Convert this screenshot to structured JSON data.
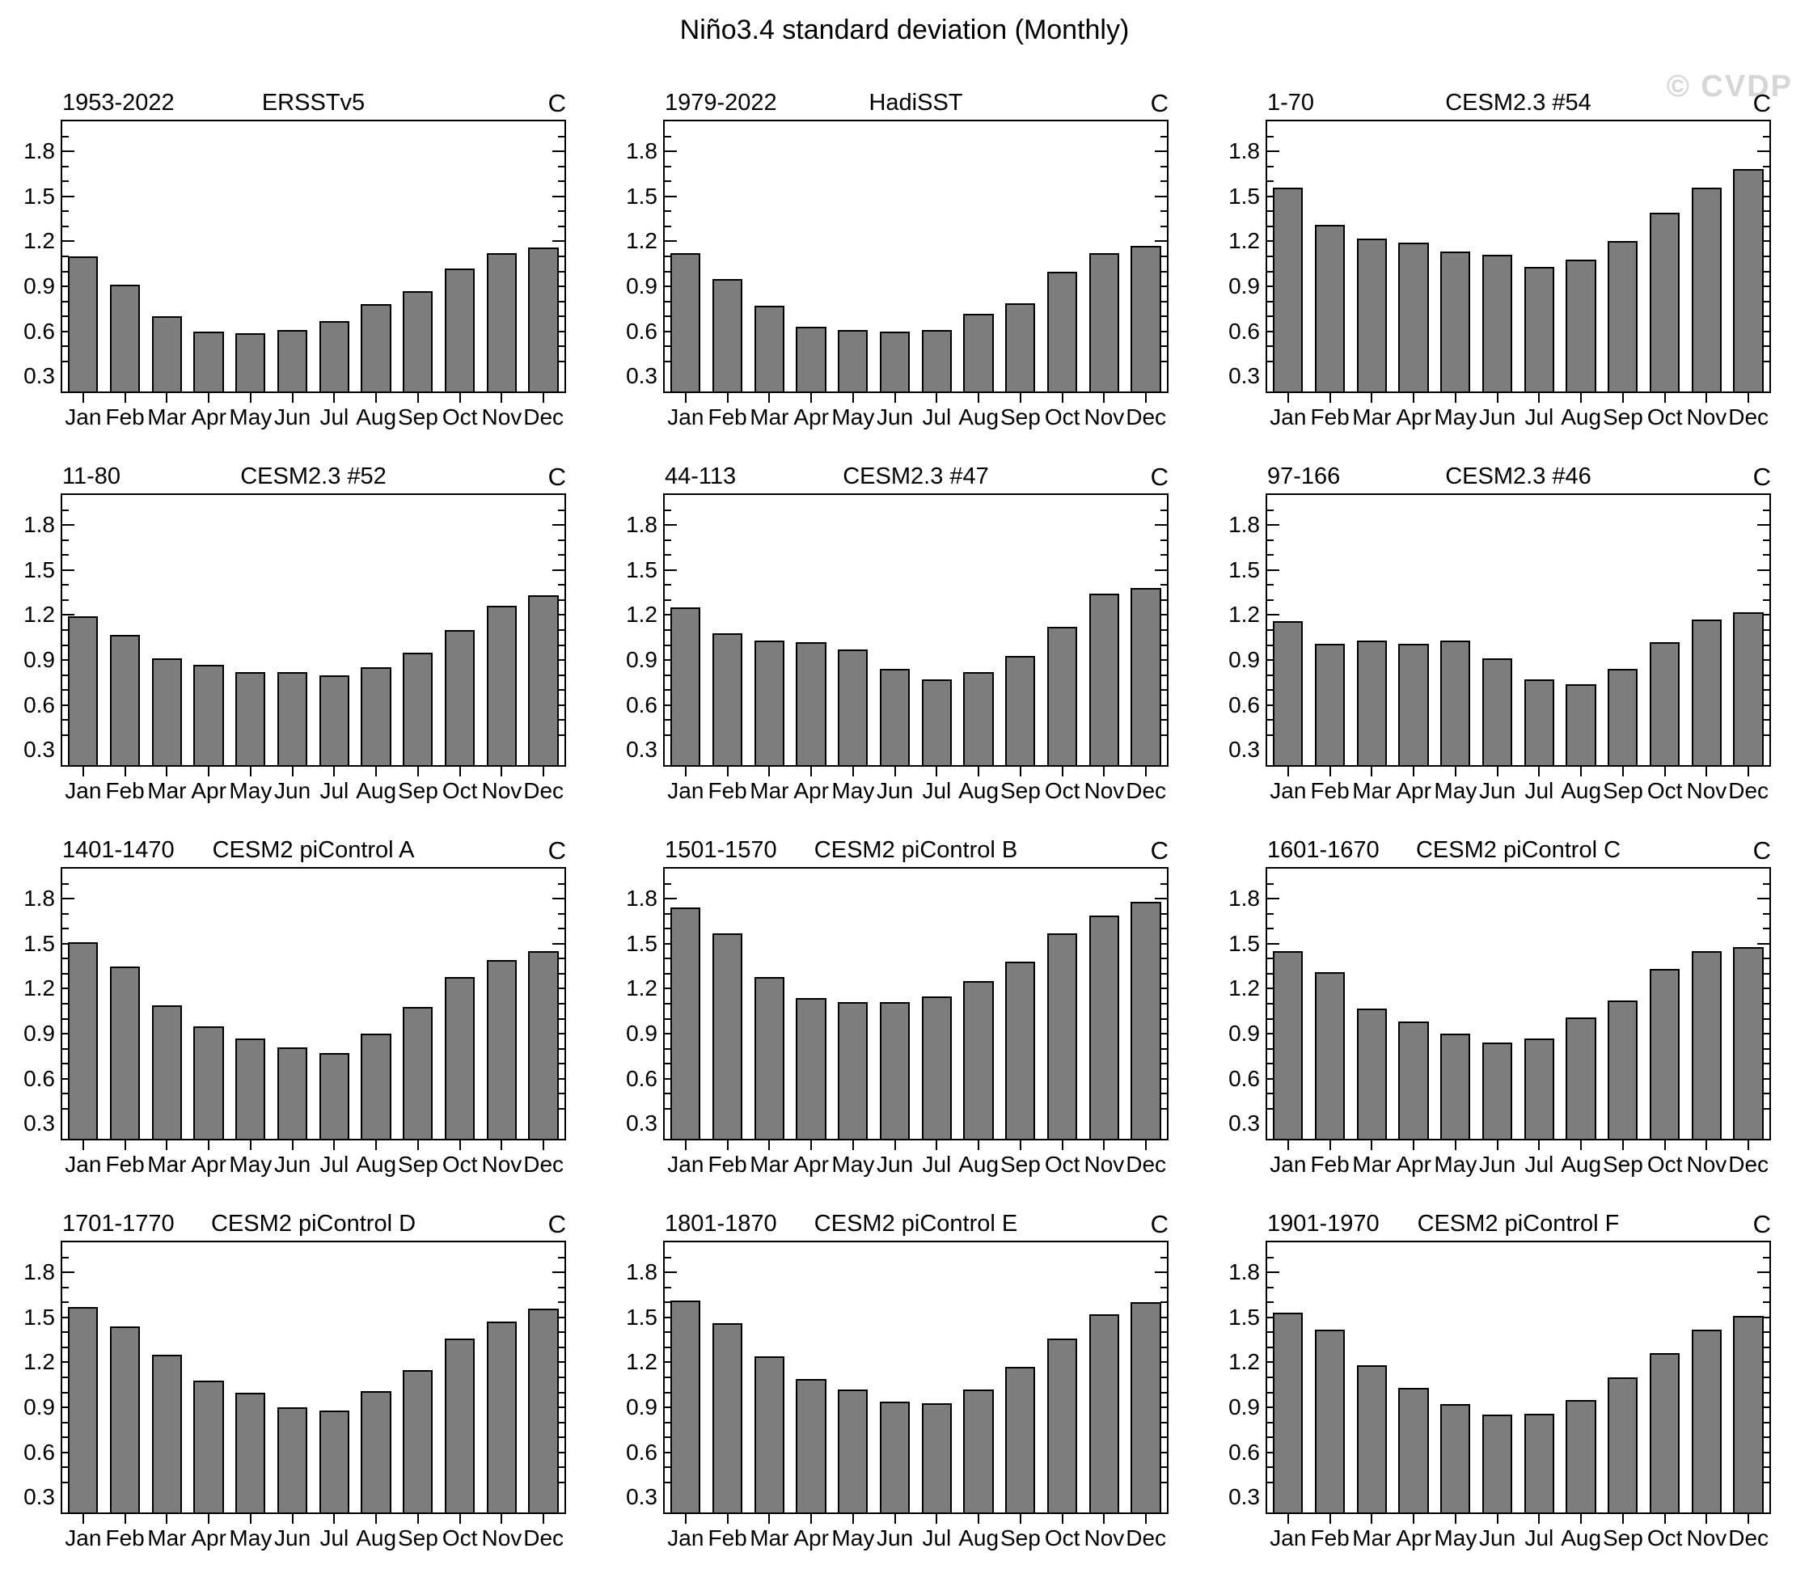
{
  "page_title": "Niño3.4 standard deviation (Monthly)",
  "watermark": "© CVDP",
  "chart_data": {
    "type": "bar",
    "title": "Niño3.4 standard deviation (Monthly)",
    "categories": [
      "Jan",
      "Feb",
      "Mar",
      "Apr",
      "May",
      "Jun",
      "Jul",
      "Aug",
      "Sep",
      "Oct",
      "Nov",
      "Dec"
    ],
    "unit_label": "C",
    "ylabel": "",
    "xlabel": "",
    "yticks": [
      0.3,
      0.6,
      0.9,
      1.2,
      1.5,
      1.8
    ],
    "minor_tick_step": 0.1,
    "ylim": [
      0.2,
      2.0
    ],
    "bar_color": "#7d7d7d",
    "grid": false,
    "legend_position": "none",
    "panels": [
      {
        "period": "1953-2022",
        "name": "ERSSTv5",
        "values": [
          1.1,
          0.91,
          0.7,
          0.6,
          0.59,
          0.61,
          0.67,
          0.78,
          0.87,
          1.02,
          1.12,
          1.16
        ]
      },
      {
        "period": "1979-2022",
        "name": "HadiSST",
        "values": [
          1.12,
          0.95,
          0.77,
          0.63,
          0.61,
          0.6,
          0.61,
          0.72,
          0.79,
          1.0,
          1.12,
          1.17
        ]
      },
      {
        "period": "1-70",
        "name": "CESM2.3 #54",
        "values": [
          1.56,
          1.31,
          1.22,
          1.19,
          1.13,
          1.11,
          1.03,
          1.08,
          1.2,
          1.39,
          1.56,
          1.68
        ]
      },
      {
        "period": "11-80",
        "name": "CESM2.3 #52",
        "values": [
          1.19,
          1.07,
          0.91,
          0.87,
          0.82,
          0.82,
          0.8,
          0.85,
          0.95,
          1.1,
          1.26,
          1.33
        ]
      },
      {
        "period": "44-113",
        "name": "CESM2.3 #47",
        "values": [
          1.25,
          1.08,
          1.03,
          1.02,
          0.97,
          0.84,
          0.77,
          0.82,
          0.93,
          1.12,
          1.34,
          1.38
        ]
      },
      {
        "period": "97-166",
        "name": "CESM2.3 #46",
        "values": [
          1.16,
          1.01,
          1.03,
          1.01,
          1.03,
          0.91,
          0.77,
          0.74,
          0.84,
          1.02,
          1.17,
          1.22
        ]
      },
      {
        "period": "1401-1470",
        "name": "CESM2 piControl A",
        "values": [
          1.51,
          1.35,
          1.09,
          0.95,
          0.87,
          0.81,
          0.77,
          0.9,
          1.08,
          1.28,
          1.39,
          1.45
        ]
      },
      {
        "period": "1501-1570",
        "name": "CESM2 piControl B",
        "values": [
          1.74,
          1.57,
          1.28,
          1.14,
          1.11,
          1.11,
          1.15,
          1.25,
          1.38,
          1.57,
          1.69,
          1.78
        ]
      },
      {
        "period": "1601-1670",
        "name": "CESM2 piControl C",
        "values": [
          1.45,
          1.31,
          1.07,
          0.98,
          0.9,
          0.84,
          0.87,
          1.01,
          1.12,
          1.33,
          1.45,
          1.48
        ]
      },
      {
        "period": "1701-1770",
        "name": "CESM2 piControl D",
        "values": [
          1.57,
          1.44,
          1.25,
          1.08,
          1.0,
          0.9,
          0.88,
          1.01,
          1.15,
          1.36,
          1.47,
          1.56
        ]
      },
      {
        "period": "1801-1870",
        "name": "CESM2 piControl E",
        "values": [
          1.61,
          1.46,
          1.24,
          1.09,
          1.02,
          0.94,
          0.93,
          1.02,
          1.17,
          1.36,
          1.52,
          1.6
        ]
      },
      {
        "period": "1901-1970",
        "name": "CESM2 piControl F",
        "values": [
          1.53,
          1.42,
          1.18,
          1.03,
          0.92,
          0.85,
          0.86,
          0.95,
          1.1,
          1.26,
          1.42,
          1.51
        ]
      }
    ]
  }
}
